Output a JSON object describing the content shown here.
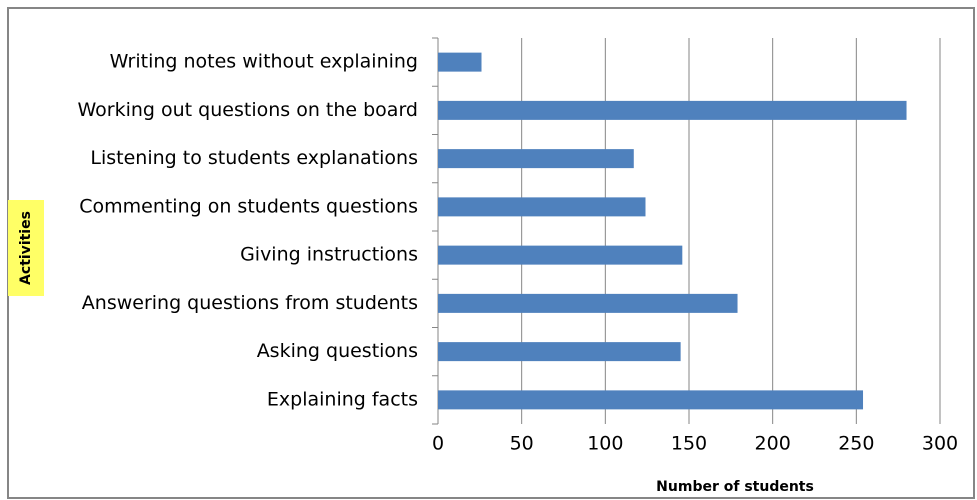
{
  "chart_data": {
    "type": "bar",
    "orientation": "horizontal",
    "x_label": "Number of students",
    "y_label": "Activities",
    "categories": [
      "Writing notes without explaining",
      "Working out questions on the board",
      "Listening to students explanations",
      "Commenting on students questions",
      "Giving instructions",
      "Answering questions from students",
      "Asking questions",
      "Explaining facts"
    ],
    "values": [
      26,
      280,
      117,
      124,
      146,
      179,
      145,
      254
    ],
    "color": "#4f81bd",
    "xlim": [
      0,
      300
    ],
    "xticks": [
      0,
      50,
      100,
      150,
      200,
      250,
      300
    ],
    "grid": true
  }
}
